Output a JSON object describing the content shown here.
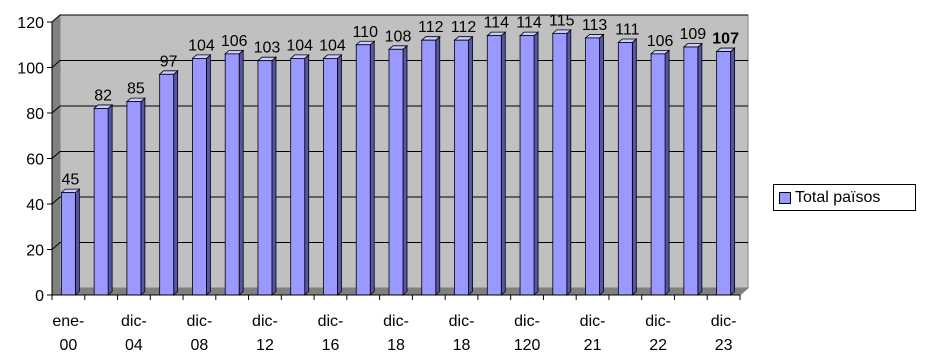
{
  "chart_data": {
    "type": "bar",
    "style": "3d-column",
    "categories": [
      "ene-00",
      "",
      "dic-04",
      "",
      "dic-08",
      "",
      "dic-12",
      "",
      "dic-16",
      "",
      "dic-18",
      "",
      "dic-18",
      "",
      "dic-120",
      "",
      "dic-21",
      "",
      "dic-22",
      "",
      "dic-23"
    ],
    "tick_labels": [
      [
        "ene-",
        "00"
      ],
      [
        "dic-",
        "04"
      ],
      [
        "dic-",
        "08"
      ],
      [
        "dic-",
        "12"
      ],
      [
        "dic-",
        "16"
      ],
      [
        "dic-",
        "18"
      ],
      [
        "dic-",
        "18"
      ],
      [
        "dic-",
        "120"
      ],
      [
        "dic-",
        "21"
      ],
      [
        "dic-",
        "22"
      ],
      [
        "dic-",
        "23"
      ]
    ],
    "series": [
      {
        "name": "Total països",
        "values": [
          45,
          82,
          85,
          97,
          104,
          106,
          103,
          104,
          104,
          110,
          108,
          112,
          112,
          114,
          114,
          115,
          113,
          111,
          106,
          109,
          107
        ],
        "labels": [
          "45",
          "82",
          "85",
          "97",
          "104",
          "106",
          "103",
          "104",
          "104",
          "110",
          "108",
          "112",
          "112",
          "114",
          "114",
          "115",
          "113",
          "111",
          "106",
          "109",
          "107"
        ]
      }
    ],
    "bold_last_label": true,
    "ylim": [
      0,
      120
    ],
    "yticks": [
      "0",
      "20",
      "40",
      "60",
      "80",
      "100",
      "120"
    ],
    "grid": true,
    "legend": "right",
    "colors": {
      "bar": "#9999ff",
      "bar_side": "#5555aa",
      "bar_top": "#ccccff",
      "plot_back": "#c0c0c0",
      "plot_floor": "#808080"
    }
  }
}
